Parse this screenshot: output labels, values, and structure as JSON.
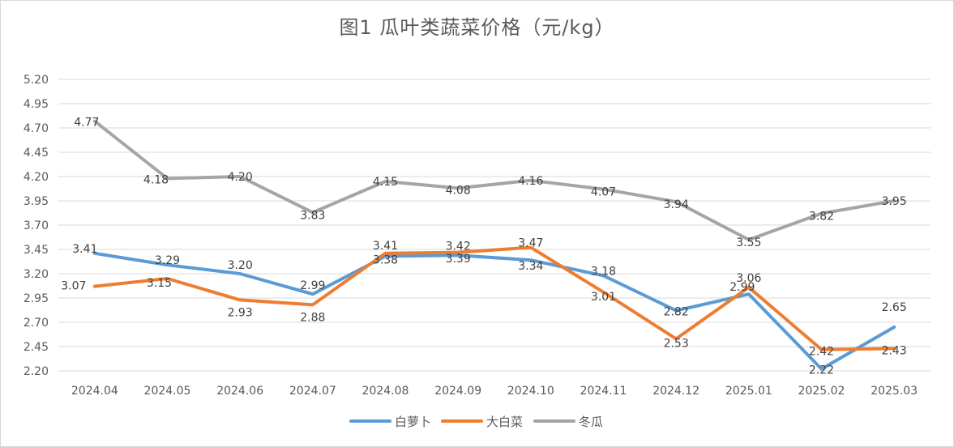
{
  "chart_data": {
    "type": "line",
    "title": "图1  瓜叶类蔬菜价格（元/kg）",
    "categories": [
      "2024.04",
      "2024.05",
      "2024.06",
      "2024.07",
      "2024.08",
      "2024.09",
      "2024.10",
      "2024.11",
      "2024.12",
      "2025.01",
      "2025.02",
      "2025.03"
    ],
    "yticks": [
      "2.20",
      "2.45",
      "2.70",
      "2.95",
      "3.20",
      "3.45",
      "3.70",
      "3.95",
      "4.20",
      "4.45",
      "4.70",
      "4.95",
      "5.20"
    ],
    "ylim": [
      2.2,
      5.2
    ],
    "grid": true,
    "legend": "bottom",
    "series": [
      {
        "name": "白萝卜",
        "color": "#5b9bd5",
        "values": [
          3.41,
          3.29,
          3.2,
          2.99,
          3.38,
          3.39,
          3.34,
          3.18,
          2.82,
          2.99,
          2.22,
          2.65
        ],
        "labels": [
          "3.41",
          "3.29",
          "3.20",
          "2.99",
          "3.38",
          "3.39",
          "3.34",
          "3.18",
          "2.82",
          "2.99",
          "2.22",
          "2.65"
        ]
      },
      {
        "name": "大白菜",
        "color": "#ed7d31",
        "values": [
          3.07,
          3.15,
          2.93,
          2.88,
          3.41,
          3.42,
          3.47,
          3.01,
          2.53,
          3.06,
          2.42,
          2.43
        ],
        "labels": [
          "3.07",
          "3.15",
          "2.93",
          "2.88",
          "3.41",
          "3.42",
          "3.47",
          "3.01",
          "2.53",
          "3.06",
          "2.42",
          "2.43"
        ]
      },
      {
        "name": "冬瓜",
        "color": "#a5a5a5",
        "values": [
          4.77,
          4.18,
          4.2,
          3.83,
          4.15,
          4.08,
          4.16,
          4.07,
          3.94,
          3.55,
          3.82,
          3.95
        ],
        "labels": [
          "4.77",
          "4.18",
          "4.20",
          "3.83",
          "4.15",
          "4.08",
          "4.16",
          "4.07",
          "3.94",
          "3.55",
          "3.82",
          "3.95"
        ]
      }
    ]
  }
}
